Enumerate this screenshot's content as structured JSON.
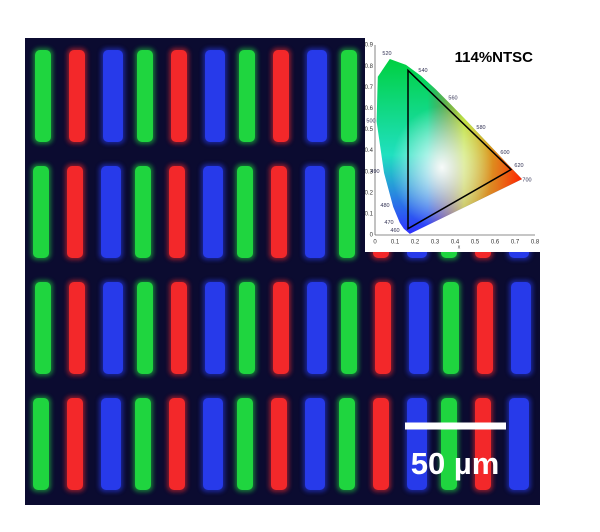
{
  "inset": {
    "title": "114%NTSC",
    "x_ticks": [
      "0",
      "0.1",
      "0.2",
      "0.3",
      "0.4",
      "0.5",
      "0.6",
      "0.7",
      "0.8"
    ],
    "y_ticks": [
      "0",
      "0.1",
      "0.2",
      "0.3",
      "0.4",
      "0.5",
      "0.6",
      "0.7",
      "0.8",
      "0.9"
    ],
    "wavelengths": [
      "520",
      "540",
      "560",
      "580",
      "600",
      "620",
      "700",
      "500",
      "490",
      "480",
      "470",
      "460"
    ],
    "x_axis_label": "x"
  },
  "scale_bar": {
    "label": "50 µm"
  }
}
